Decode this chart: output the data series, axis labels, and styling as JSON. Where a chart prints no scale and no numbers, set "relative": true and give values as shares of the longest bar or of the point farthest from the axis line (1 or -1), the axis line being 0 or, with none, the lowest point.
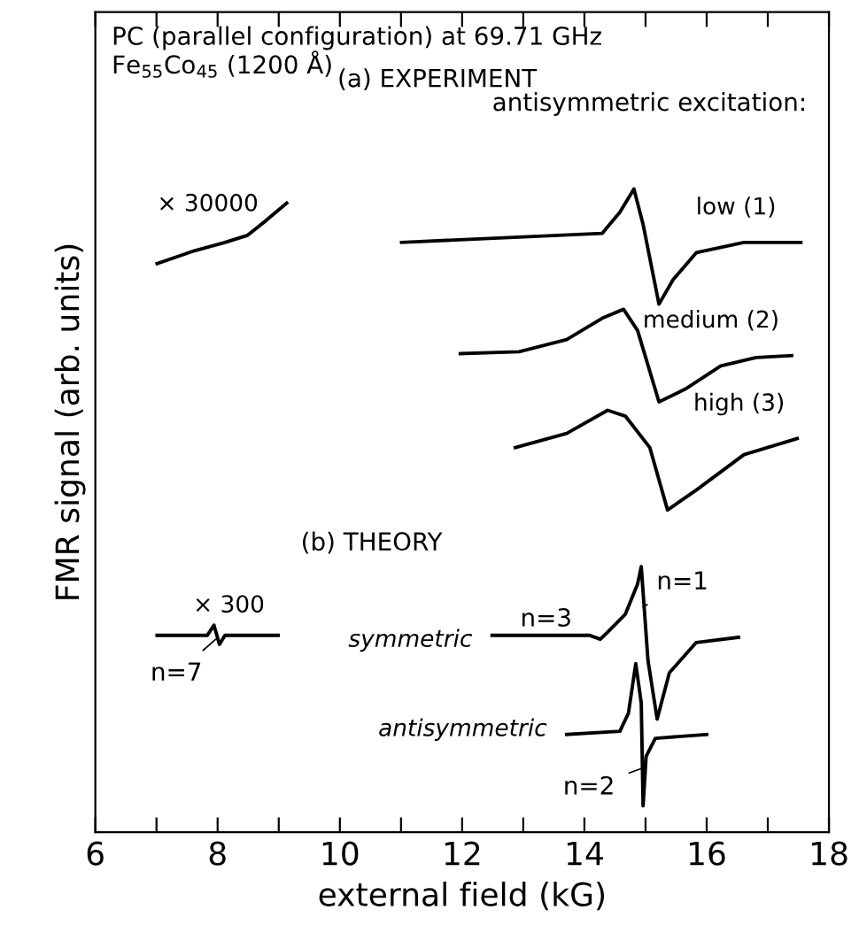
{
  "chart_data": {
    "type": "line",
    "relative": true,
    "title": "PC (parallel configuration) at 69.71 GHz",
    "subtitle": "Fe$_{55}$Co$_{45}$ (1200 Å)",
    "xlabel": "external field (kG)",
    "ylabel": "FMR signal (arb. units)",
    "xlim": [
      6,
      18
    ],
    "xticks": [
      6,
      {
        "value": 7,
        "label": null
      },
      8,
      {
        "value": 9,
        "label": null
      },
      10,
      {
        "value": 11,
        "label": null
      },
      12,
      {
        "value": 13,
        "label": null
      },
      14,
      {
        "value": 15,
        "label": null
      },
      16,
      {
        "value": 17,
        "label": null
      },
      18
    ],
    "grid": false,
    "legend": false,
    "marker": "none",
    "line_style": "solid",
    "annotations": [
      "(a) EXPERIMENT",
      "antisymmetric excitation:",
      "(b) THEORY",
      {
        "text": "n=1",
        "x": 14.96,
        "y": 0.35
      },
      {
        "text": "n=3",
        "x": 14.26,
        "y": 0.3
      },
      {
        "text": "n=7",
        "x": 7.97,
        "y": 0.3
      },
      {
        "text": "n=2",
        "x": 14.96,
        "y": 0.1
      }
    ],
    "series": [
      {
        "name": "× 30000",
        "color": "#000000",
        "x": [
          7.01,
          7.62,
          8.12,
          8.49,
          8.78,
          9.13
        ],
        "values": [
          0.884,
          0.904,
          0.917,
          0.928,
          0.95,
          0.978
        ]
      },
      {
        "name": "low (1)",
        "color": "#000000",
        "x": [
          11.01,
          14.29,
          14.58,
          14.81,
          14.96,
          15.22,
          15.45,
          15.83,
          16.61,
          17.54
        ],
        "values": [
          0.917,
          0.931,
          0.964,
          1.0,
          0.945,
          0.821,
          0.859,
          0.901,
          0.917,
          0.917
        ]
      },
      {
        "name": "medium (2)",
        "color": "#000000",
        "x": [
          11.97,
          12.93,
          13.71,
          14.29,
          14.64,
          14.87,
          15.22,
          15.65,
          16.23,
          16.81,
          17.39
        ],
        "values": [
          0.744,
          0.747,
          0.766,
          0.799,
          0.813,
          0.78,
          0.669,
          0.689,
          0.725,
          0.738,
          0.741
        ]
      },
      {
        "name": "high (3)",
        "color": "#000000",
        "x": [
          12.87,
          13.71,
          14.38,
          14.67,
          15.07,
          15.36,
          15.83,
          16.61,
          17.48
        ],
        "values": [
          0.598,
          0.62,
          0.656,
          0.647,
          0.598,
          0.501,
          0.532,
          0.587,
          0.612
        ]
      },
      {
        "name": "× 300",
        "color": "#000000",
        "x": [
          7.01,
          7.83,
          7.94,
          8.03,
          8.12,
          8.99
        ],
        "values": [
          0.306,
          0.306,
          0.322,
          0.292,
          0.306,
          0.306
        ]
      },
      {
        "name": "symmetric",
        "color": "#000000",
        "x": [
          12.49,
          14.09,
          14.26,
          14.38,
          14.67,
          14.87,
          14.93,
          15.04,
          15.19,
          15.39,
          15.83,
          16.52
        ],
        "values": [
          0.306,
          0.306,
          0.3,
          0.311,
          0.339,
          0.386,
          0.413,
          0.267,
          0.176,
          0.248,
          0.295,
          0.303
        ]
      },
      {
        "name": "antisymmetric",
        "color": "#000000",
        "x": [
          13.71,
          14.58,
          14.72,
          14.84,
          14.93,
          14.96,
          15.01,
          15.16,
          16.0
        ],
        "values": [
          0.152,
          0.157,
          0.185,
          0.262,
          0.201,
          0.041,
          0.118,
          0.146,
          0.152
        ]
      }
    ]
  }
}
